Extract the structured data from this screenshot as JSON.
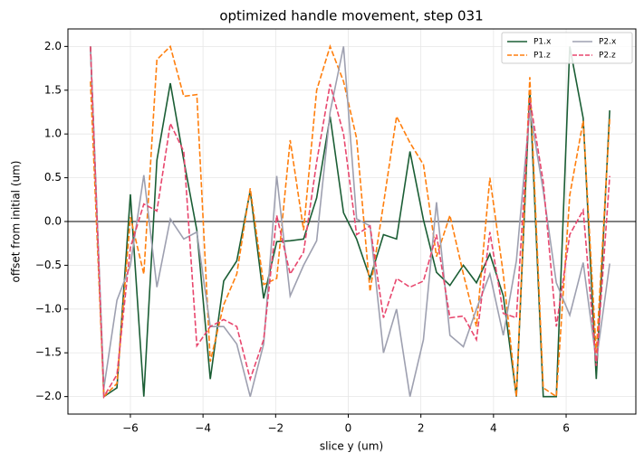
{
  "chart_data": {
    "type": "line",
    "title": "optimized handle movement, step 031",
    "xlabel": "slice y (um)",
    "ylabel": "offset from initial (um)",
    "x": [
      -7.1,
      -6.73,
      -6.37,
      -6.0,
      -5.63,
      -5.27,
      -4.9,
      -4.53,
      -4.17,
      -3.8,
      -3.43,
      -3.07,
      -2.7,
      -2.33,
      -1.97,
      -1.6,
      -1.23,
      -0.87,
      -0.5,
      -0.13,
      0.23,
      0.6,
      0.97,
      1.33,
      1.7,
      2.07,
      2.43,
      2.8,
      3.17,
      3.53,
      3.9,
      4.27,
      4.63,
      5.0,
      5.37,
      5.73,
      6.1,
      6.47,
      6.83,
      7.2
    ],
    "series": [
      {
        "name": "P1.x",
        "color": "#1b5e35",
        "linestyle": "solid",
        "values": [
          2.0,
          -2.0,
          -1.9,
          0.31,
          -2.0,
          0.7,
          1.58,
          0.7,
          -0.1,
          -1.8,
          -0.68,
          -0.45,
          0.35,
          -0.88,
          -0.23,
          -0.22,
          -0.2,
          0.27,
          1.2,
          0.1,
          -0.2,
          -0.65,
          -0.15,
          -0.2,
          0.8,
          0.02,
          -0.58,
          -0.73,
          -0.5,
          -0.7,
          -0.37,
          -0.85,
          -2.0,
          1.5,
          -2.0,
          -2.0,
          2.0,
          1.18,
          -1.8,
          1.27
        ]
      },
      {
        "name": "P1.z",
        "color": "#ff7f0e",
        "linestyle": "dashed",
        "values": [
          1.6,
          -2.0,
          -1.85,
          0.05,
          -0.6,
          1.85,
          2.0,
          1.43,
          1.45,
          -1.6,
          -0.95,
          -0.6,
          0.38,
          -0.72,
          -0.65,
          0.93,
          -0.1,
          1.5,
          2.0,
          1.6,
          0.95,
          -0.8,
          0.2,
          1.2,
          0.9,
          0.65,
          -0.4,
          0.07,
          -0.6,
          -1.2,
          0.5,
          -0.6,
          -2.0,
          1.65,
          -1.9,
          -2.0,
          0.3,
          1.15,
          -1.5,
          1.17
        ]
      },
      {
        "name": "P2.x",
        "color": "#9ea0b0",
        "linestyle": "solid",
        "values": [
          2.0,
          -1.9,
          -0.9,
          -0.5,
          0.53,
          -0.75,
          0.03,
          -0.2,
          -0.12,
          -1.2,
          -1.2,
          -1.4,
          -2.0,
          -1.4,
          0.52,
          -0.85,
          -0.5,
          -0.22,
          1.25,
          2.0,
          0.03,
          -0.05,
          -1.5,
          -1.0,
          -2.0,
          -1.35,
          0.22,
          -1.3,
          -1.43,
          -1.0,
          -0.6,
          -1.3,
          -0.45,
          1.28,
          0.35,
          -0.7,
          -1.07,
          -0.47,
          -1.6,
          -0.48
        ]
      },
      {
        "name": "P2.z",
        "color": "#e8476e",
        "linestyle": "dashed",
        "values": [
          2.0,
          -2.0,
          -1.75,
          -0.3,
          0.2,
          0.12,
          1.12,
          0.8,
          -1.42,
          -1.2,
          -1.12,
          -1.2,
          -1.8,
          -1.35,
          0.07,
          -0.6,
          -0.35,
          0.68,
          1.57,
          1.0,
          -0.15,
          -0.05,
          -1.1,
          -0.65,
          -0.75,
          -0.68,
          -0.15,
          -1.1,
          -1.08,
          -1.35,
          -0.12,
          -1.05,
          -1.1,
          1.4,
          0.45,
          -1.2,
          -0.15,
          0.13,
          -1.65,
          0.52
        ]
      }
    ],
    "reference_line": 0,
    "xlim": [
      -7.72,
      7.92
    ],
    "ylim": [
      -2.2,
      2.2
    ],
    "xticks": [
      {
        "value": -6,
        "label": "−6"
      },
      {
        "value": -4,
        "label": "−4"
      },
      {
        "value": -2,
        "label": "−2"
      },
      0,
      2,
      4,
      6
    ],
    "yticks": [
      {
        "value": -2,
        "label": "−2.0"
      },
      {
        "value": -1.5,
        "label": "−1.5"
      },
      {
        "value": -1,
        "label": "−1.0"
      },
      {
        "value": -0.5,
        "label": "−0.5"
      },
      {
        "value": 0,
        "label": "0.0"
      },
      {
        "value": 0.5,
        "label": "0.5"
      },
      {
        "value": 1,
        "label": "1.0"
      },
      {
        "value": 1.5,
        "label": "1.5"
      },
      {
        "value": 2,
        "label": "2.0"
      }
    ],
    "grid": true,
    "legend": "upper right"
  }
}
